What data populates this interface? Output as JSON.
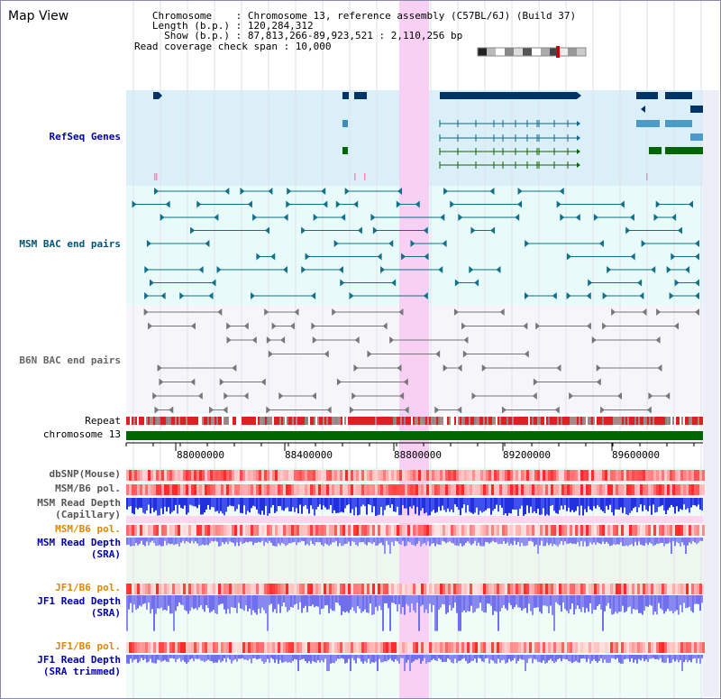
{
  "view_title": "Map View",
  "info": {
    "line1": "   Chromosome    : Chromosome 13, reference assembly (C57BL/6J) (Build 37)",
    "line2": "   Length (b.p.) : 120,284,312",
    "line3": "     Show (b.p.) : 87,813,266-89,923,521 : 2,110,256 bp",
    "line4": "Read coverage check span : 10,000"
  },
  "tracks": {
    "refseq": "RefSeq Genes",
    "msm_bac": "MSM BAC end pairs",
    "b6n_bac": "B6N BAC end pairs",
    "repeat": "Repeat",
    "chromosome": "chromosome 13",
    "dbsnp": "dbSNP(Mouse)",
    "msm_b6_pol": "MSM/B6 pol.",
    "msm_read_depth_cap_1": "MSM Read Depth",
    "msm_read_depth_cap_2": "(Capillary)",
    "msm_b6_pol_2": "MSM/B6 pol.",
    "msm_read_depth_sra_1": "MSM Read Depth",
    "msm_read_depth_sra_2": "(SRA)",
    "jf1_b6_pol": "JF1/B6 pol.",
    "jf1_read_depth_1": "JF1 Read Depth",
    "jf1_read_depth_2": "(SRA)",
    "jf1_b6_pol_2": "JF1/B6 pol.",
    "jf1_read_depth_trim_1": "JF1 Read Depth",
    "jf1_read_depth_trim_2": "(SRA trimmed)"
  },
  "axis_ticks": [
    "88000000",
    "88400000",
    "88800000",
    "89200000",
    "89600000"
  ],
  "colors": {
    "refseq_label": "#0000aa",
    "msm_label": "#005577",
    "b6n_label": "#666666",
    "orange_label": "#dd8800",
    "blue_label": "#0000aa",
    "highlight": "#f8d0f4"
  }
}
